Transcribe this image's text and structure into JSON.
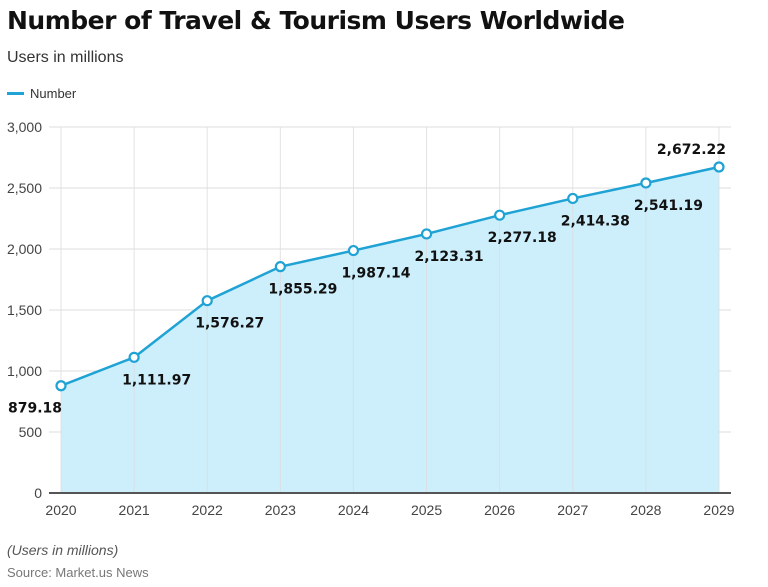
{
  "chart_data": {
    "type": "area",
    "title": "Number of Travel & Tourism Users Worldwide",
    "subtitle": "Users in millions",
    "categories": [
      "2020",
      "2021",
      "2022",
      "2023",
      "2024",
      "2025",
      "2026",
      "2027",
      "2028",
      "2029"
    ],
    "series": [
      {
        "name": "Number",
        "values": [
          879.18,
          1111.97,
          1576.27,
          1855.29,
          1987.14,
          2123.31,
          2277.18,
          2414.38,
          2541.19,
          2672.22
        ],
        "labels": [
          "879.18",
          "1,111.97",
          "1,576.27",
          "1,855.29",
          "1,987.14",
          "2,123.31",
          "2,277.18",
          "2,414.38",
          "2,541.19",
          "2,672.22"
        ],
        "color": "#1fa2d4",
        "fill": "#cdeefb"
      }
    ],
    "yticks": [
      "0",
      "500",
      "1,000",
      "1,500",
      "2,000",
      "2,500",
      "3,000"
    ],
    "ylim": [
      0,
      3000
    ],
    "grid": true,
    "legend": "top-left",
    "note": "(Users in millions)",
    "source": "Source: Market.us News"
  }
}
